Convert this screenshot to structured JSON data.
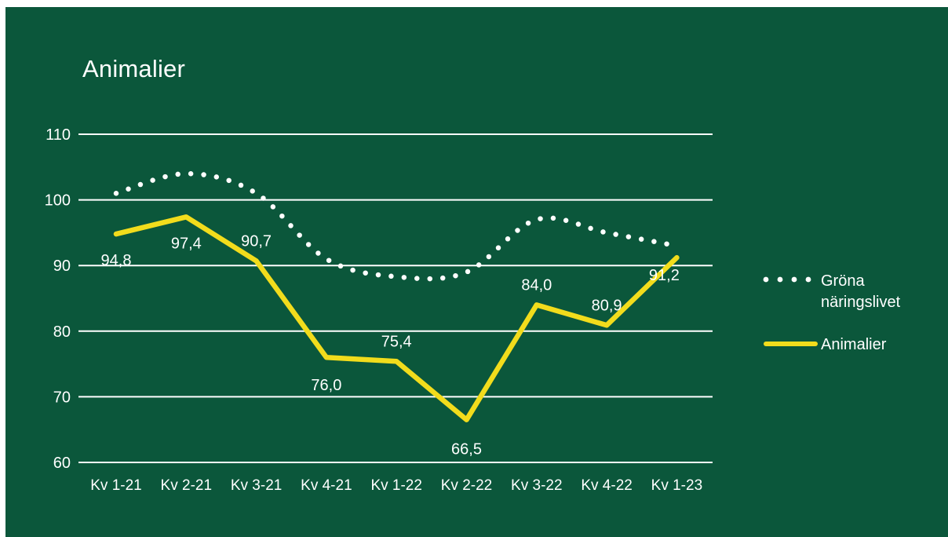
{
  "colors": {
    "background": "#0b573b",
    "text": "#ffffff",
    "gridline": "#ffffff",
    "series_dotted": "#ffffff",
    "series_solid": "#f2dc1c"
  },
  "chart_data": {
    "type": "line",
    "title": "Animalier",
    "xlabel": "",
    "ylabel": "",
    "ylim": [
      60,
      110
    ],
    "yticks": [
      "60",
      "70",
      "80",
      "90",
      "100",
      "110"
    ],
    "grid": true,
    "legend_position": "right",
    "categories": [
      "Kv 1-21",
      "Kv 2-21",
      "Kv 3-21",
      "Kv 4-21",
      "Kv 1-22",
      "Kv 2-22",
      "Kv 3-22",
      "Kv 4-22",
      "Kv 1-23"
    ],
    "series": [
      {
        "name": "Gröna näringslivet",
        "style": "dotted",
        "smooth": true,
        "color": "#ffffff",
        "values": [
          101,
          104,
          101,
          91,
          88.3,
          89,
          97,
          95,
          93
        ]
      },
      {
        "name": "Animalier",
        "style": "solid",
        "smooth": false,
        "color": "#f2dc1c",
        "values": [
          94.8,
          97.4,
          90.7,
          76.0,
          75.4,
          66.5,
          84.0,
          80.9,
          91.2
        ],
        "data_labels": [
          "94,8",
          "97,4",
          "90,7",
          "76,0",
          "75,4",
          "66,5",
          "84,0",
          "80,9",
          "91,2"
        ]
      }
    ],
    "legend": {
      "dotted_label_lines": [
        "Gröna",
        "näringslivet"
      ],
      "solid_label": "Animalier"
    }
  }
}
